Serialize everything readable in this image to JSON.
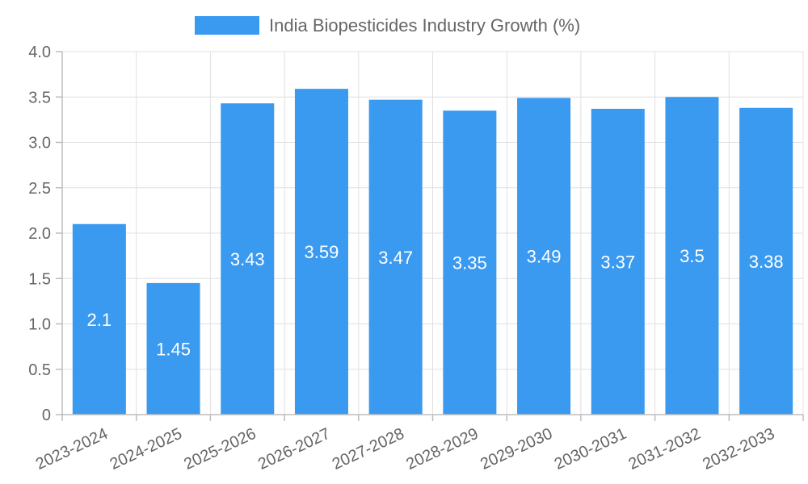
{
  "chart_data": {
    "type": "bar",
    "title": "",
    "legend": {
      "position": "top",
      "entries": [
        "India Biopesticides Industry Growth (%)"
      ]
    },
    "categories": [
      "2023-2024",
      "2024-2025",
      "2025-2026",
      "2026-2027",
      "2027-2028",
      "2028-2029",
      "2029-2030",
      "2030-2031",
      "2031-2032",
      "2032-2033"
    ],
    "series": [
      {
        "name": "India Biopesticides Industry Growth (%)",
        "values": [
          2.1,
          1.45,
          3.43,
          3.59,
          3.47,
          3.35,
          3.49,
          3.37,
          3.5,
          3.38
        ],
        "labels": [
          "2.1",
          "1.45",
          "3.43",
          "3.59",
          "3.47",
          "3.35",
          "3.49",
          "3.37",
          "3.5",
          "3.38"
        ]
      }
    ],
    "y_ticks": [
      "0",
      "0.5",
      "1.0",
      "1.5",
      "2.0",
      "2.5",
      "3.0",
      "3.5",
      "4.0"
    ],
    "ylim": [
      0,
      4
    ],
    "xlabel": "",
    "ylabel": "",
    "grid": true,
    "bar_color": "#3a9af0"
  }
}
